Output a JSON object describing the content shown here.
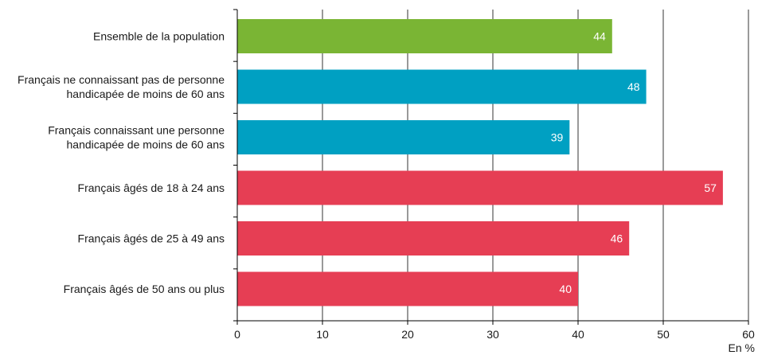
{
  "chart_data": {
    "type": "bar",
    "orientation": "horizontal",
    "categories": [
      [
        "Ensemble de la population"
      ],
      [
        "Français ne connaissant pas de personne",
        "handicapée de moins de 60 ans"
      ],
      [
        "Français connaissant une personne",
        "handicapée de moins de 60 ans"
      ],
      [
        "Français âgés de 18 à 24 ans"
      ],
      [
        "Français âgés de 25 à 49 ans"
      ],
      [
        "Français âgés de 50 ans ou plus"
      ]
    ],
    "values": [
      44,
      48,
      39,
      57,
      46,
      40
    ],
    "value_labels": [
      "44",
      "48",
      "39",
      "57",
      "46",
      "40"
    ],
    "bar_colors": [
      "#7ab534",
      "#00a0c2",
      "#00a0c2",
      "#e63e54",
      "#e63e54",
      "#e63e54"
    ],
    "xlim": [
      0,
      60
    ],
    "x_ticks": [
      "0",
      "10",
      "20",
      "30",
      "40",
      "50",
      "60"
    ],
    "x_unit": "En %",
    "grid": true,
    "legend": "none"
  }
}
